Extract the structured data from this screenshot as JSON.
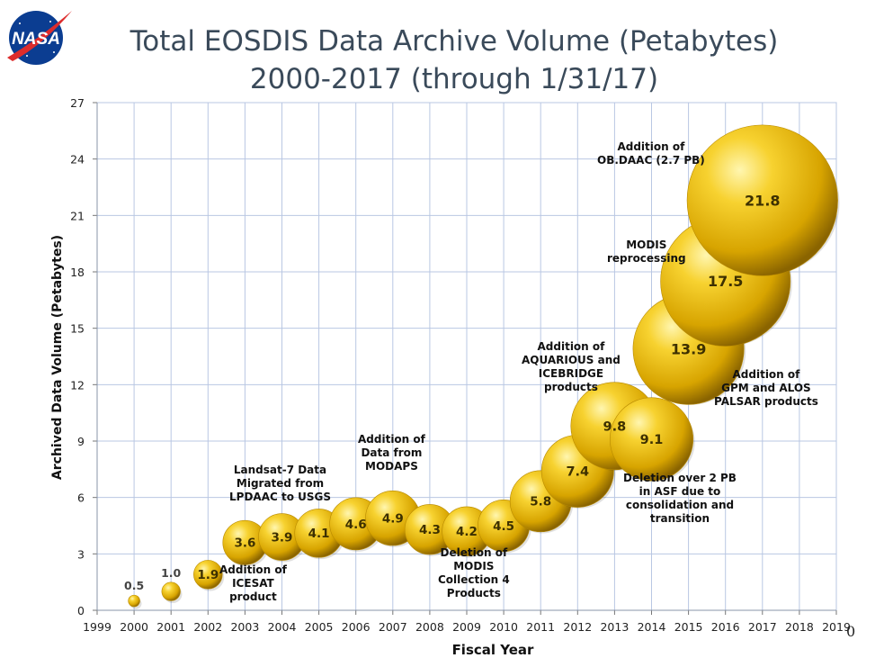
{
  "logo_text": "NASA",
  "title_line1": "Total EOSDIS Data Archive Volume (Petabytes)",
  "title_line2": "2000-2017 (through 1/31/17)",
  "edge_mark": "0",
  "chart_data": {
    "type": "scatter",
    "style": "bubble",
    "xlabel": "Fiscal Year",
    "ylabel": "Archived Data Volume (Petabytes)",
    "xlim": [
      1999,
      2019
    ],
    "ylim": [
      0,
      27
    ],
    "x_ticks": [
      "1999",
      "2000",
      "2001",
      "2002",
      "2003",
      "2004",
      "2005",
      "2006",
      "2007",
      "2008",
      "2009",
      "2010",
      "2011",
      "2012",
      "2013",
      "2014",
      "2015",
      "2016",
      "2017",
      "2018",
      "2019"
    ],
    "y_ticks": [
      "0",
      "3",
      "6",
      "9",
      "12",
      "15",
      "18",
      "21",
      "24",
      "27"
    ],
    "grid": true,
    "bubble_color": "#e0b000",
    "points": [
      {
        "x": 2000,
        "y": 0.5,
        "label": "0.5"
      },
      {
        "x": 2001,
        "y": 1.0,
        "label": "1.0"
      },
      {
        "x": 2002,
        "y": 1.9,
        "label": "1.9"
      },
      {
        "x": 2003,
        "y": 3.6,
        "label": "3.6"
      },
      {
        "x": 2004,
        "y": 3.9,
        "label": "3.9"
      },
      {
        "x": 2005,
        "y": 4.1,
        "label": "4.1"
      },
      {
        "x": 2006,
        "y": 4.6,
        "label": "4.6"
      },
      {
        "x": 2007,
        "y": 4.9,
        "label": "4.9"
      },
      {
        "x": 2008,
        "y": 4.3,
        "label": "4.3"
      },
      {
        "x": 2009,
        "y": 4.2,
        "label": "4.2"
      },
      {
        "x": 2010,
        "y": 4.5,
        "label": "4.5"
      },
      {
        "x": 2011,
        "y": 5.8,
        "label": "5.8"
      },
      {
        "x": 2012,
        "y": 7.4,
        "label": "7.4"
      },
      {
        "x": 2013,
        "y": 9.8,
        "label": "9.8"
      },
      {
        "x": 2014,
        "y": 9.1,
        "label": "9.1"
      },
      {
        "x": 2015,
        "y": 13.9,
        "label": "13.9"
      },
      {
        "x": 2016,
        "y": 17.5,
        "label": "17.5"
      },
      {
        "x": 2017,
        "y": 21.8,
        "label": "21.8"
      }
    ],
    "annotations": [
      {
        "text": "Addition of\nICESAT\nproduct"
      },
      {
        "text": "Landsat-7 Data\nMigrated from\nLPDAAC to USGS"
      },
      {
        "text": "Addition of\nData from\nMODAPS"
      },
      {
        "text": "Deletion of\nMODIS\nCollection 4\nProducts"
      },
      {
        "text": "Addition of\nAQUARIOUS and\nICEBRIDGE\nproducts"
      },
      {
        "text": "Deletion over 2 PB\nin ASF  due to\nconsolidation and\ntransition"
      },
      {
        "text": "Addition of\nGPM and ALOS\nPALSAR products"
      },
      {
        "text": "MODIS\nreprocessing"
      },
      {
        "text": "Addition of\nOB.DAAC (2.7 PB)"
      }
    ]
  }
}
